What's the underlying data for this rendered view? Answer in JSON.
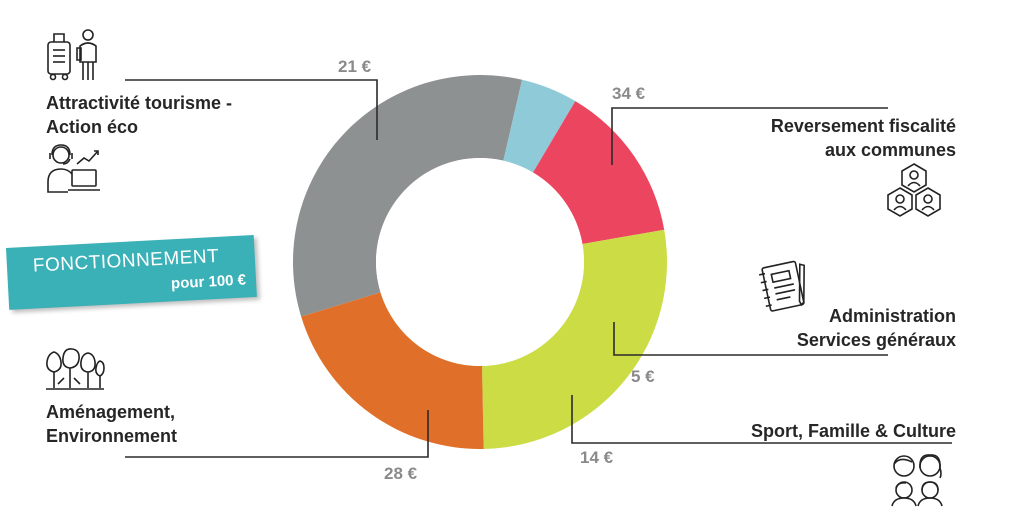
{
  "chart_data": {
    "type": "pie",
    "donut": true,
    "unit": "€",
    "slices": [
      {
        "label": "Reversement fiscalité aux communes",
        "value": 34,
        "value_label": "34 €",
        "color": "#8e9191"
      },
      {
        "label": "Administration Services généraux",
        "value": 5,
        "value_label": "5 €",
        "color": "#8fcad9"
      },
      {
        "label": "Sport, Famille & Culture",
        "value": 14,
        "value_label": "14 €",
        "color": "#ec4560"
      },
      {
        "label": "Aménagement, Environnement",
        "value": 28,
        "value_label": "28 €",
        "color": "#cbdc45"
      },
      {
        "label": "Attractivité tourisme - Action éco",
        "value": 21,
        "value_label": "21 €",
        "color": "#e07029"
      }
    ]
  },
  "badge": {
    "line1": "FONCTIONNEMENT",
    "line2": "pour 100 €"
  },
  "labels": {
    "tourisme": [
      "Attractivité tourisme -",
      "Action éco"
    ],
    "fiscalite": [
      "Reversement fiscalité",
      "aux communes"
    ],
    "administration": [
      "Administration",
      "Services généraux"
    ],
    "sport": [
      "Sport, Famille & Culture"
    ],
    "amenagement": [
      "Aménagement,",
      "Environnement"
    ]
  },
  "icons": [
    "luggage-traveler-icon",
    "call-center-growth-icon",
    "community-people-icon",
    "notebook-icon",
    "trees-icon",
    "family-icon"
  ]
}
